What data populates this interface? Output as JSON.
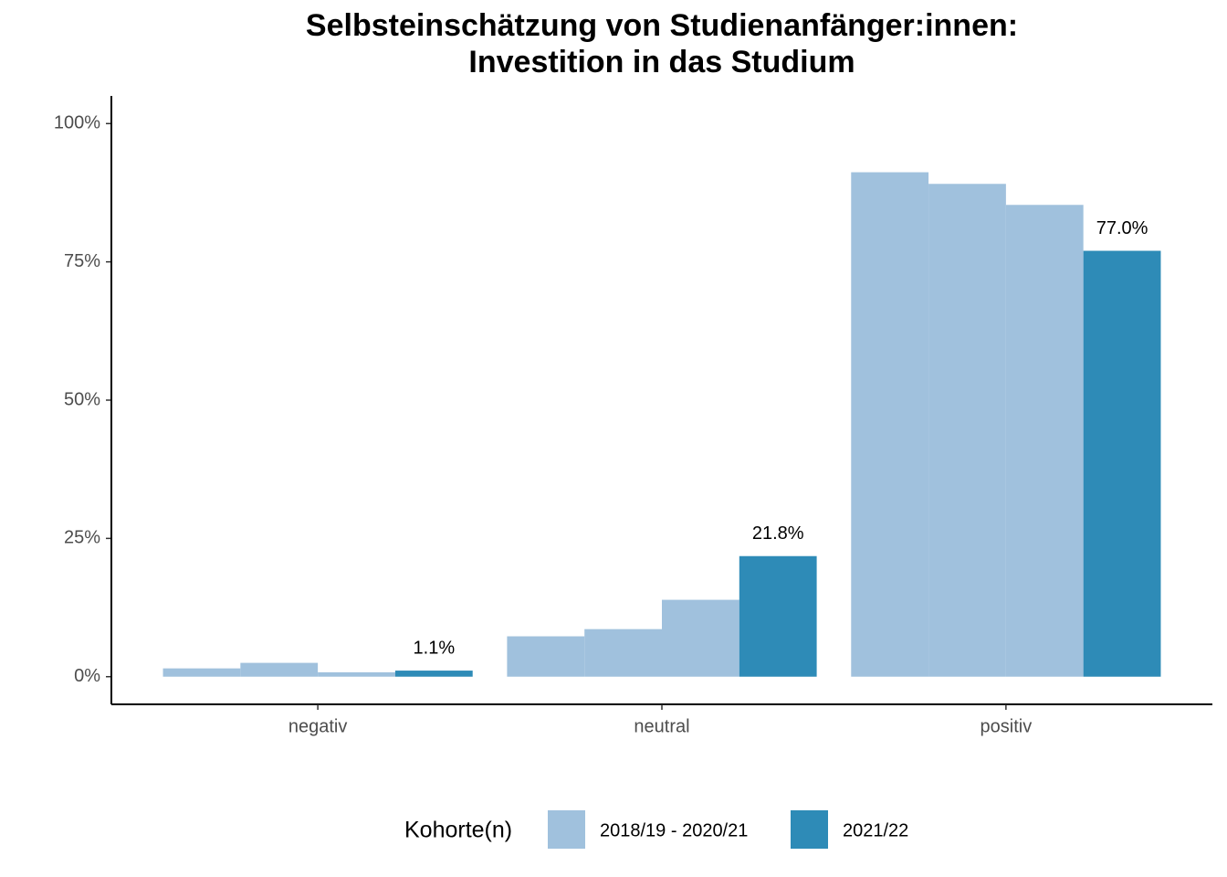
{
  "chart_data": {
    "type": "grouped-bar",
    "title": [
      "Selbsteinschätzung von Studienanfänger:innen:",
      "Investition in das Studium"
    ],
    "categories": [
      "negativ",
      "neutral",
      "positiv"
    ],
    "series": [
      {
        "name": "2018/19 - 2020/21",
        "color": "#a0c1dd",
        "values": [
          [
            1.5,
            2.5,
            0.8
          ],
          [
            7.3,
            8.6,
            13.9
          ],
          [
            91.2,
            89.1,
            85.3
          ]
        ]
      },
      {
        "name": "2021/22",
        "color": "#2e8bb7",
        "values": [
          1.1,
          21.8,
          77.0
        ],
        "value_labels": [
          "1.1%",
          "21.8%",
          "77.0%"
        ]
      }
    ],
    "ylim": [
      -5,
      105
    ],
    "yticks": [
      {
        "value": 0,
        "label": "0%"
      },
      {
        "value": 25,
        "label": "25%"
      },
      {
        "value": 50,
        "label": "50%"
      },
      {
        "value": 75,
        "label": "75%"
      },
      {
        "value": 100,
        "label": "100%"
      }
    ],
    "legend_title": "Kohorte(n)",
    "legend_position": "bottom",
    "grid": false
  }
}
